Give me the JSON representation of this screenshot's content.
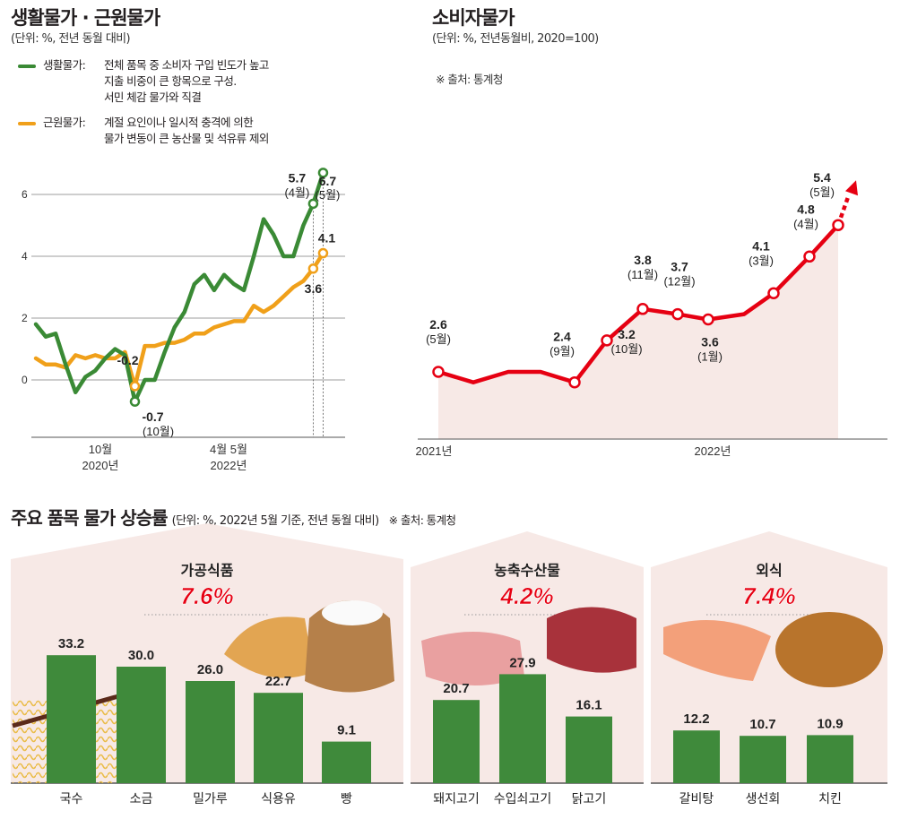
{
  "colors": {
    "living": "#3a8a35",
    "core": "#f0a01a",
    "cpi": "#e60012",
    "bar": "#3f8a3b",
    "highlight": "#e60012",
    "panel_fill": "#f7e9e6"
  },
  "left_chart": {
    "title": "생활물가 · 근원물가",
    "subtitle": "(단위: %, 전년 동월 대비)",
    "legend": [
      {
        "name": "생활물가:",
        "lines": [
          "전체 품목 중 소비자 구입 빈도가 높고",
          "지출 비중이 큰 항목으로 구성.",
          "서민 체감 물가와 직결"
        ]
      },
      {
        "name": "근원물가:",
        "lines": [
          "계절 요인이나 일시적 충격에 의한",
          "물가 변동이 큰 농산물 및 석유류 제외"
        ]
      }
    ],
    "annotations": {
      "living_2020_10": "-0.7",
      "living_2020_10_month": "(10월)",
      "core_2020_10": "-0.2",
      "living_apr": "5.7",
      "living_apr_month": "(4월)",
      "living_may": "6.7",
      "living_may_month": "(5월)",
      "core_apr": "3.6",
      "core_may": "4.1"
    },
    "x_labels": [
      {
        "month": "10월",
        "year": "2020년"
      },
      {
        "month": "4월 5월",
        "year": "2022년"
      }
    ]
  },
  "right_chart": {
    "title": "소비자물가",
    "subtitle": "(단위: %, 전년동월비, 2020=100)",
    "source": "※ 출처: 통계청",
    "x_labels": [
      "2021년",
      "2022년"
    ],
    "points": [
      {
        "value": "2.6",
        "month": "(5월)"
      },
      {
        "value": "2.4",
        "month": "(9월)"
      },
      {
        "value": "3.2",
        "month": "(10월)"
      },
      {
        "value": "3.8",
        "month": "(11월)"
      },
      {
        "value": "3.7",
        "month": "(12월)"
      },
      {
        "value": "3.6",
        "month": "(1월)"
      },
      {
        "value": "4.1",
        "month": "(3월)"
      },
      {
        "value": "4.8",
        "month": "(4월)"
      },
      {
        "value": "5.4",
        "month": "(5월)"
      }
    ]
  },
  "bottom": {
    "title": "주요 품목 물가 상승률",
    "subtitle": "(단위: %, 2022년 5월 기준, 전년 동월 대비)",
    "source": "※ 출처: 통계청",
    "panels": [
      {
        "name": "가공식품",
        "rate": "7.6%",
        "items": [
          "국수",
          "소금",
          "밀가루",
          "식용유",
          "빵"
        ],
        "values": [
          33.2,
          30.0,
          26.0,
          22.7,
          9.1
        ],
        "labels": [
          "33.2",
          "30.0",
          "26.0",
          "22.7",
          "9.1"
        ]
      },
      {
        "name": "농축수산물",
        "rate": "4.2%",
        "items": [
          "돼지고기",
          "수입쇠고기",
          "닭고기"
        ],
        "values": [
          20.7,
          27.9,
          16.1
        ],
        "labels": [
          "20.7",
          "27.9",
          "16.1"
        ]
      },
      {
        "name": "외식",
        "rate": "7.4%",
        "items": [
          "갈비탕",
          "생선회",
          "치킨"
        ],
        "values": [
          12.2,
          10.7,
          10.9
        ],
        "labels": [
          "12.2",
          "10.7",
          "10.9"
        ]
      }
    ]
  },
  "chart_data": [
    {
      "type": "line",
      "title": "생활물가 · 근원물가",
      "ylabel": "단위: %, 전년 동월 대비",
      "y_ticks": [
        0,
        2,
        4,
        6
      ],
      "ylim": [
        -2,
        8
      ],
      "x": [
        "2019-12",
        "2020-01",
        "2020-02",
        "2020-03",
        "2020-04",
        "2020-05",
        "2020-06",
        "2020-07",
        "2020-08",
        "2020-09",
        "2020-10",
        "2020-11",
        "2020-12",
        "2021-01",
        "2021-02",
        "2021-03",
        "2021-04",
        "2021-05",
        "2021-06",
        "2021-07",
        "2021-08",
        "2021-09",
        "2021-10",
        "2021-11",
        "2021-12",
        "2022-01",
        "2022-02",
        "2022-03",
        "2022-04",
        "2022-05"
      ],
      "series": [
        {
          "name": "생활물가",
          "values": [
            1.8,
            1.4,
            1.5,
            0.5,
            -0.4,
            0.1,
            0.3,
            0.7,
            1.0,
            0.8,
            -0.7,
            0.0,
            0.0,
            0.9,
            1.7,
            2.2,
            3.1,
            3.4,
            2.9,
            3.4,
            3.1,
            2.9,
            4.0,
            5.2,
            4.7,
            4.0,
            4.0,
            5.0,
            5.7,
            6.7
          ]
        },
        {
          "name": "근원물가",
          "values": [
            0.7,
            0.5,
            0.5,
            0.4,
            0.8,
            0.7,
            0.8,
            0.7,
            0.7,
            0.9,
            -0.2,
            1.1,
            1.1,
            1.2,
            1.2,
            1.3,
            1.5,
            1.5,
            1.7,
            1.8,
            1.9,
            1.9,
            2.4,
            2.2,
            2.4,
            2.7,
            3.0,
            3.2,
            3.6,
            4.1
          ]
        }
      ]
    },
    {
      "type": "line",
      "title": "소비자물가",
      "ylabel": "단위: %, 전년동월비, 2020=100",
      "x": [
        "2021-05",
        "2021-06",
        "2021-07",
        "2021-08",
        "2021-09",
        "2021-10",
        "2021-11",
        "2021-12",
        "2022-01",
        "2022-02",
        "2022-03",
        "2022-04",
        "2022-05"
      ],
      "series": [
        {
          "name": "소비자물가",
          "values": [
            2.6,
            2.4,
            2.6,
            2.6,
            2.4,
            3.2,
            3.8,
            3.7,
            3.6,
            3.7,
            4.1,
            4.8,
            5.4
          ]
        }
      ]
    },
    {
      "type": "bar",
      "title": "주요 품목 물가 상승률",
      "ylabel": "단위: %, 2022년 5월 기준, 전년 동월 대비",
      "groups": [
        {
          "name": "가공식품",
          "rate": 7.6,
          "categories": [
            "국수",
            "소금",
            "밀가루",
            "식용유",
            "빵"
          ],
          "values": [
            33.2,
            30.0,
            26.0,
            22.7,
            9.1
          ]
        },
        {
          "name": "농축수산물",
          "rate": 4.2,
          "categories": [
            "돼지고기",
            "수입쇠고기",
            "닭고기"
          ],
          "values": [
            20.7,
            27.9,
            16.1
          ]
        },
        {
          "name": "외식",
          "rate": 7.4,
          "categories": [
            "갈비탕",
            "생선회",
            "치킨"
          ],
          "values": [
            12.2,
            10.7,
            10.9
          ]
        }
      ]
    }
  ]
}
